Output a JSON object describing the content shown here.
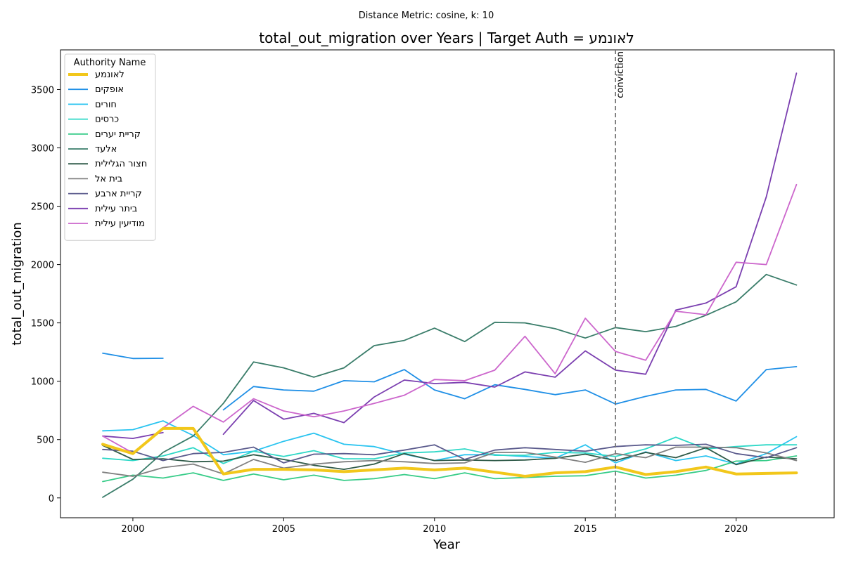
{
  "chart_data": {
    "type": "line",
    "suptitle": "Distance Metric: cosine, k: 10",
    "title": "total_out_migration over Years | Target Auth = לאונמע",
    "xlabel": "Year",
    "ylabel": "total_out_migration",
    "xlim": [
      1997.6,
      2023.25
    ],
    "ylim": [
      -170,
      3840
    ],
    "xticks": [
      2000,
      2005,
      2010,
      2015,
      2020
    ],
    "yticks": [
      0,
      500,
      1000,
      1500,
      2000,
      2500,
      3000,
      3500
    ],
    "grid": false,
    "legend": {
      "title": "Authority Name",
      "placement": "top-left"
    },
    "vline": {
      "x": 2016,
      "label": "conviction",
      "color": "#777777"
    },
    "x": [
      1999,
      2000,
      2001,
      2002,
      2003,
      2004,
      2005,
      2006,
      2007,
      2008,
      2009,
      2010,
      2011,
      2012,
      2013,
      2014,
      2015,
      2016,
      2017,
      2018,
      2019,
      2020,
      2021,
      2022
    ],
    "series": [
      {
        "name": "לאונמע",
        "color": "#f2c71b",
        "highlight": true,
        "values": [
          460,
          380,
          595,
          595,
          205,
          245,
          245,
          240,
          225,
          240,
          255,
          240,
          255,
          220,
          185,
          215,
          225,
          265,
          200,
          225,
          265,
          205,
          210,
          215
        ]
      },
      {
        "name": "אופקים",
        "color": "#1f8fe6",
        "values": [
          1240,
          1195,
          1197,
          null,
          755,
          955,
          925,
          915,
          1005,
          995,
          1100,
          925,
          850,
          970,
          930,
          885,
          925,
          805,
          870,
          925,
          930,
          830,
          1100,
          1125
        ]
      },
      {
        "name": "חורים",
        "color": "#2ac4f0",
        "values": [
          575,
          585,
          660,
          535,
          370,
          400,
          485,
          555,
          460,
          440,
          375,
          320,
          370,
          370,
          355,
          340,
          455,
          300,
          395,
          320,
          360,
          290,
          380,
          525
        ]
      },
      {
        "name": "כרסים",
        "color": "#2ed8c7",
        "values": [
          340,
          320,
          360,
          430,
          295,
          400,
          355,
          405,
          335,
          335,
          385,
          395,
          420,
          365,
          365,
          390,
          385,
          355,
          420,
          520,
          420,
          440,
          455,
          455
        ]
      },
      {
        "name": "קריית יערים",
        "color": "#36cc88",
        "values": [
          140,
          195,
          170,
          215,
          150,
          205,
          155,
          195,
          150,
          165,
          200,
          165,
          215,
          165,
          175,
          185,
          190,
          230,
          170,
          195,
          235,
          315,
          320,
          360
        ]
      },
      {
        "name": "אלעד",
        "color": "#3a7d6a",
        "values": [
          5,
          160,
          390,
          530,
          810,
          1165,
          1115,
          1035,
          1115,
          1305,
          1350,
          1455,
          1340,
          1505,
          1500,
          1450,
          1370,
          1460,
          1425,
          1470,
          1565,
          1680,
          1915,
          1825
        ]
      },
      {
        "name": "חצור הגלילית",
        "color": "#2f5a48",
        "values": [
          450,
          330,
          335,
          310,
          315,
          370,
          330,
          280,
          245,
          290,
          380,
          320,
          325,
          320,
          325,
          340,
          375,
          320,
          390,
          345,
          430,
          285,
          350,
          335
        ]
      },
      {
        "name": "בית אל",
        "color": "#808080",
        "values": [
          220,
          185,
          260,
          290,
          205,
          330,
          255,
          290,
          310,
          320,
          310,
          295,
          300,
          390,
          390,
          350,
          305,
          380,
          345,
          435,
          435,
          430,
          385,
          320
        ]
      },
      {
        "name": "קריית ארבע",
        "color": "#5a5a8c",
        "values": [
          415,
          400,
          320,
          380,
          390,
          435,
          300,
          375,
          380,
          370,
          410,
          455,
          330,
          410,
          430,
          415,
          400,
          440,
          455,
          450,
          460,
          380,
          345,
          430
        ]
      },
      {
        "name": "ביתר עילית",
        "color": "#7b3fb0",
        "values": [
          530,
          510,
          560,
          null,
          545,
          835,
          675,
          725,
          645,
          865,
          1010,
          980,
          990,
          950,
          1080,
          1035,
          1260,
          1095,
          1060,
          1610,
          1670,
          1810,
          2580,
          3640
        ]
      },
      {
        "name": "מודיעין עילית",
        "color": "#cc66cc",
        "values": [
          530,
          385,
          600,
          785,
          650,
          850,
          745,
          695,
          745,
          810,
          880,
          1015,
          1005,
          1095,
          1385,
          1065,
          1540,
          1255,
          1180,
          1600,
          1570,
          2020,
          2000,
          2685
        ]
      }
    ]
  }
}
